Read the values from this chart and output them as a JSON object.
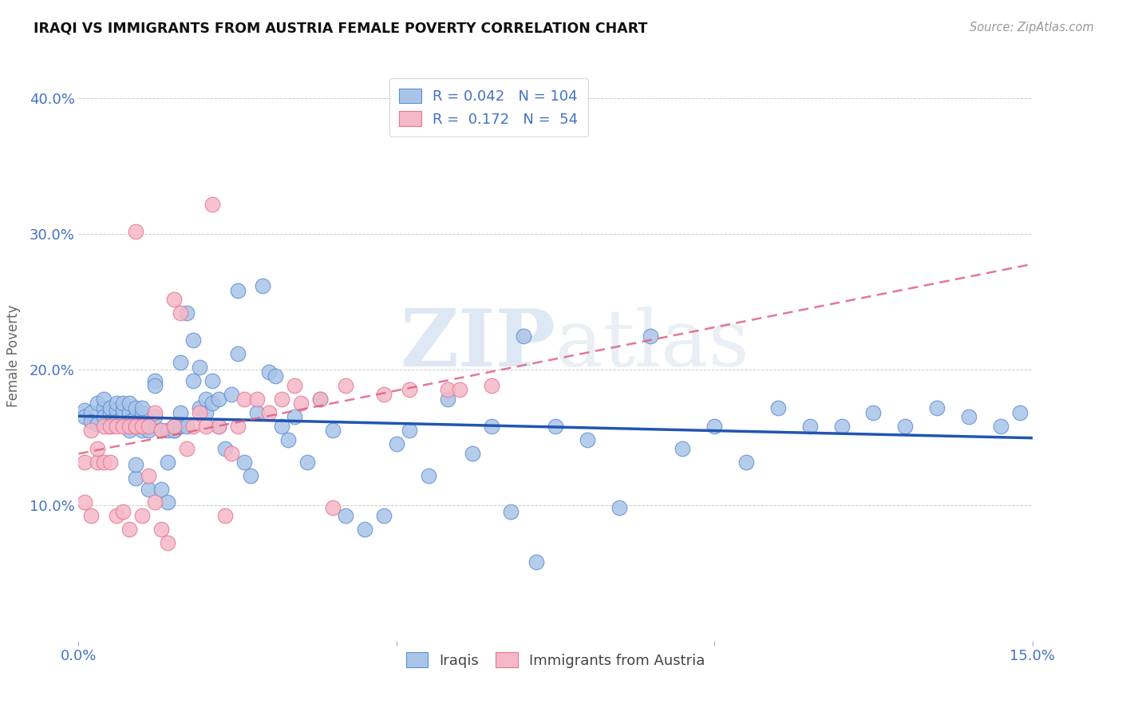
{
  "title": "IRAQI VS IMMIGRANTS FROM AUSTRIA FEMALE POVERTY CORRELATION CHART",
  "source": "Source: ZipAtlas.com",
  "ylabel": "Female Poverty",
  "xlim": [
    0.0,
    0.15
  ],
  "ylim": [
    0.0,
    0.42
  ],
  "iraqis_color": "#aac4e8",
  "austria_color": "#f5b8c8",
  "iraqis_edge_color": "#5b8fd4",
  "austria_edge_color": "#e8758f",
  "iraqis_line_color": "#2255b0",
  "austria_line_color": "#e06080",
  "watermark_color": "#d8e4f0",
  "iraqis_x": [
    0.001,
    0.001,
    0.002,
    0.002,
    0.003,
    0.003,
    0.004,
    0.004,
    0.004,
    0.005,
    0.005,
    0.005,
    0.006,
    0.006,
    0.006,
    0.006,
    0.007,
    0.007,
    0.007,
    0.008,
    0.008,
    0.008,
    0.008,
    0.009,
    0.009,
    0.009,
    0.009,
    0.01,
    0.01,
    0.01,
    0.01,
    0.011,
    0.011,
    0.011,
    0.012,
    0.012,
    0.012,
    0.013,
    0.013,
    0.014,
    0.014,
    0.014,
    0.015,
    0.015,
    0.015,
    0.016,
    0.016,
    0.016,
    0.017,
    0.017,
    0.018,
    0.018,
    0.019,
    0.019,
    0.02,
    0.02,
    0.021,
    0.021,
    0.022,
    0.022,
    0.023,
    0.024,
    0.025,
    0.025,
    0.026,
    0.027,
    0.028,
    0.029,
    0.03,
    0.031,
    0.032,
    0.034,
    0.036,
    0.038,
    0.04,
    0.042,
    0.045,
    0.048,
    0.052,
    0.055,
    0.058,
    0.062,
    0.065,
    0.068,
    0.072,
    0.075,
    0.08,
    0.085,
    0.09,
    0.095,
    0.1,
    0.105,
    0.11,
    0.115,
    0.12,
    0.125,
    0.13,
    0.135,
    0.14,
    0.145,
    0.148,
    0.05,
    0.033,
    0.07
  ],
  "iraqis_y": [
    0.17,
    0.165,
    0.168,
    0.162,
    0.175,
    0.16,
    0.172,
    0.165,
    0.178,
    0.168,
    0.172,
    0.158,
    0.165,
    0.17,
    0.175,
    0.162,
    0.165,
    0.17,
    0.175,
    0.168,
    0.162,
    0.175,
    0.155,
    0.12,
    0.13,
    0.165,
    0.172,
    0.155,
    0.158,
    0.168,
    0.172,
    0.112,
    0.158,
    0.155,
    0.192,
    0.188,
    0.165,
    0.112,
    0.155,
    0.132,
    0.102,
    0.155,
    0.155,
    0.158,
    0.155,
    0.158,
    0.168,
    0.205,
    0.158,
    0.242,
    0.192,
    0.222,
    0.172,
    0.202,
    0.168,
    0.178,
    0.192,
    0.175,
    0.178,
    0.158,
    0.142,
    0.182,
    0.258,
    0.212,
    0.132,
    0.122,
    0.168,
    0.262,
    0.198,
    0.195,
    0.158,
    0.165,
    0.132,
    0.178,
    0.155,
    0.092,
    0.082,
    0.092,
    0.155,
    0.122,
    0.178,
    0.138,
    0.158,
    0.095,
    0.058,
    0.158,
    0.148,
    0.098,
    0.225,
    0.142,
    0.158,
    0.132,
    0.172,
    0.158,
    0.158,
    0.168,
    0.158,
    0.172,
    0.165,
    0.158,
    0.168,
    0.145,
    0.148,
    0.225
  ],
  "austria_x": [
    0.001,
    0.001,
    0.002,
    0.002,
    0.003,
    0.003,
    0.004,
    0.004,
    0.005,
    0.005,
    0.006,
    0.006,
    0.007,
    0.007,
    0.008,
    0.008,
    0.009,
    0.009,
    0.01,
    0.01,
    0.011,
    0.011,
    0.012,
    0.012,
    0.013,
    0.013,
    0.014,
    0.015,
    0.016,
    0.017,
    0.018,
    0.019,
    0.02,
    0.021,
    0.022,
    0.023,
    0.024,
    0.025,
    0.026,
    0.028,
    0.03,
    0.032,
    0.034,
    0.038,
    0.042,
    0.048,
    0.052,
    0.058,
    0.065,
    0.035,
    0.015,
    0.009,
    0.04,
    0.06
  ],
  "austria_y": [
    0.132,
    0.102,
    0.155,
    0.092,
    0.132,
    0.142,
    0.158,
    0.132,
    0.132,
    0.158,
    0.092,
    0.158,
    0.095,
    0.158,
    0.082,
    0.158,
    0.158,
    0.158,
    0.092,
    0.158,
    0.158,
    0.122,
    0.102,
    0.168,
    0.082,
    0.155,
    0.072,
    0.158,
    0.242,
    0.142,
    0.158,
    0.168,
    0.158,
    0.322,
    0.158,
    0.092,
    0.138,
    0.158,
    0.178,
    0.178,
    0.168,
    0.178,
    0.188,
    0.178,
    0.188,
    0.182,
    0.185,
    0.185,
    0.188,
    0.175,
    0.252,
    0.302,
    0.098,
    0.185
  ]
}
